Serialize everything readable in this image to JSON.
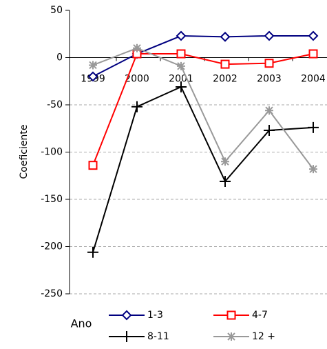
{
  "chart_data": {
    "type": "line",
    "y_label": "Coeficiente",
    "x_label": "Ano",
    "categories": [
      "1999",
      "2000",
      "2001",
      "2002",
      "2003",
      "2004"
    ],
    "series": [
      {
        "name": "1-3",
        "color": "#000080",
        "marker": "diamond",
        "values": [
          -20,
          4,
          23,
          22,
          23,
          23
        ]
      },
      {
        "name": "4-7",
        "color": "#ff0000",
        "marker": "square",
        "values": [
          -114,
          4,
          4,
          -7,
          -6,
          4
        ]
      },
      {
        "name": "8-11",
        "color": "#000000",
        "marker": "plus",
        "values": [
          -206,
          -52,
          -31,
          -131,
          -77,
          -74
        ]
      },
      {
        "name": "12 +",
        "color": "#999999",
        "marker": "asterisk",
        "values": [
          -8,
          10,
          -9,
          -110,
          -56,
          -118
        ]
      }
    ],
    "ylim": [
      -250,
      50
    ],
    "yticks": [
      -250,
      -200,
      -150,
      -100,
      -50,
      0,
      50
    ],
    "grid": true,
    "legend": "bottom"
  }
}
